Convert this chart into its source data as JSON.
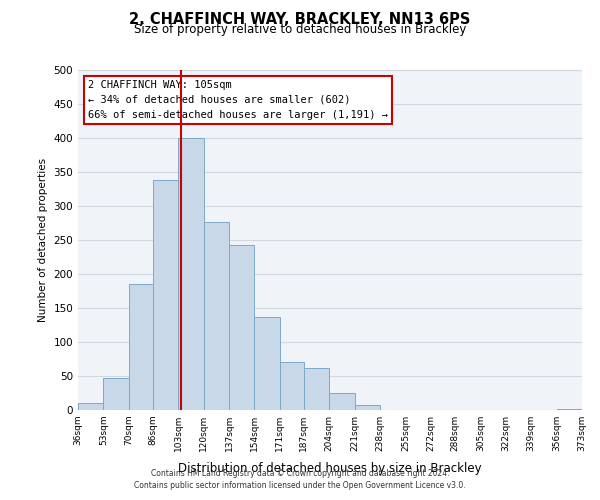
{
  "title": "2, CHAFFINCH WAY, BRACKLEY, NN13 6PS",
  "subtitle": "Size of property relative to detached houses in Brackley",
  "xlabel": "Distribution of detached houses by size in Brackley",
  "ylabel": "Number of detached properties",
  "bar_color": "#c8d8e8",
  "bar_edgecolor": "#7aaac8",
  "annotation_box_text": "2 CHAFFINCH WAY: 105sqm\n← 34% of detached houses are smaller (602)\n66% of semi-detached houses are larger (1,191) →",
  "vline_x": 105,
  "vline_color": "#cc0000",
  "footer_line1": "Contains HM Land Registry data © Crown copyright and database right 2024.",
  "footer_line2": "Contains public sector information licensed under the Open Government Licence v3.0.",
  "bins": [
    36,
    53,
    70,
    86,
    103,
    120,
    137,
    154,
    171,
    187,
    204,
    221,
    238,
    255,
    272,
    288,
    305,
    322,
    339,
    356,
    373
  ],
  "bin_labels": [
    "36sqm",
    "53sqm",
    "70sqm",
    "86sqm",
    "103sqm",
    "120sqm",
    "137sqm",
    "154sqm",
    "171sqm",
    "187sqm",
    "204sqm",
    "221sqm",
    "238sqm",
    "255sqm",
    "272sqm",
    "288sqm",
    "305sqm",
    "322sqm",
    "339sqm",
    "356sqm",
    "373sqm"
  ],
  "counts": [
    10,
    47,
    185,
    338,
    400,
    277,
    242,
    137,
    70,
    62,
    25,
    8,
    0,
    0,
    0,
    0,
    0,
    0,
    0,
    2
  ],
  "ylim": [
    0,
    500
  ],
  "yticks": [
    0,
    50,
    100,
    150,
    200,
    250,
    300,
    350,
    400,
    450,
    500
  ],
  "grid_color": "#d0d8e0",
  "background_color": "#f0f4f8"
}
